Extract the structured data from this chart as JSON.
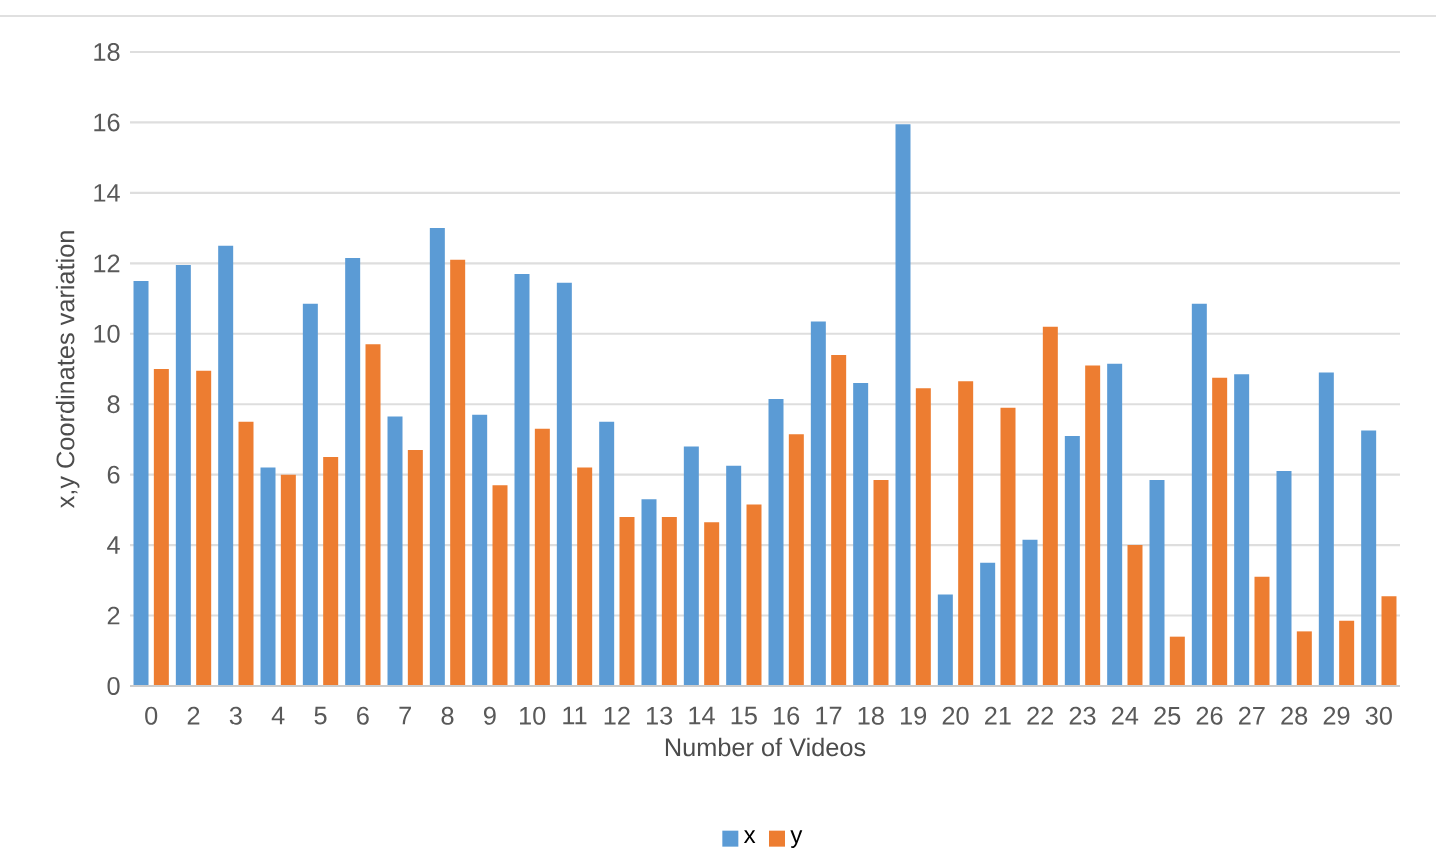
{
  "chart_data": {
    "type": "bar",
    "xlabel": "Number of Videos",
    "ylabel": "x,y Coordinates variation",
    "categories": [
      "0",
      "2",
      "3",
      "4",
      "5",
      "6",
      "7",
      "8",
      "9",
      "10",
      "11",
      "12",
      "13",
      "14",
      "15",
      "16",
      "17",
      "18",
      "19",
      "20",
      "21",
      "22",
      "23",
      "24",
      "25",
      "26",
      "27",
      "28",
      "29",
      "30"
    ],
    "series": [
      {
        "name": "x",
        "color": "#5b9bd5",
        "values": [
          11.5,
          11.95,
          12.5,
          6.2,
          10.85,
          12.15,
          7.65,
          13.0,
          7.7,
          11.7,
          11.45,
          7.5,
          5.3,
          6.8,
          6.25,
          8.15,
          10.35,
          8.6,
          15.95,
          2.6,
          3.5,
          4.15,
          7.1,
          9.15,
          5.85,
          10.85,
          8.85,
          6.1,
          8.9,
          7.25
        ]
      },
      {
        "name": "y",
        "color": "#ed7d31",
        "values": [
          9.0,
          8.95,
          7.5,
          6.0,
          6.5,
          9.7,
          6.7,
          12.1,
          5.7,
          7.3,
          6.2,
          4.8,
          4.8,
          4.65,
          5.15,
          7.15,
          9.4,
          5.85,
          8.45,
          8.65,
          7.9,
          10.2,
          9.1,
          4.0,
          1.4,
          8.75,
          3.1,
          1.55,
          1.85,
          2.55
        ]
      }
    ],
    "ylim": [
      0,
      18
    ],
    "yticks": [
      0,
      2,
      4,
      6,
      8,
      10,
      12,
      14,
      16,
      18
    ],
    "grid": "y",
    "legend": "bottom"
  }
}
